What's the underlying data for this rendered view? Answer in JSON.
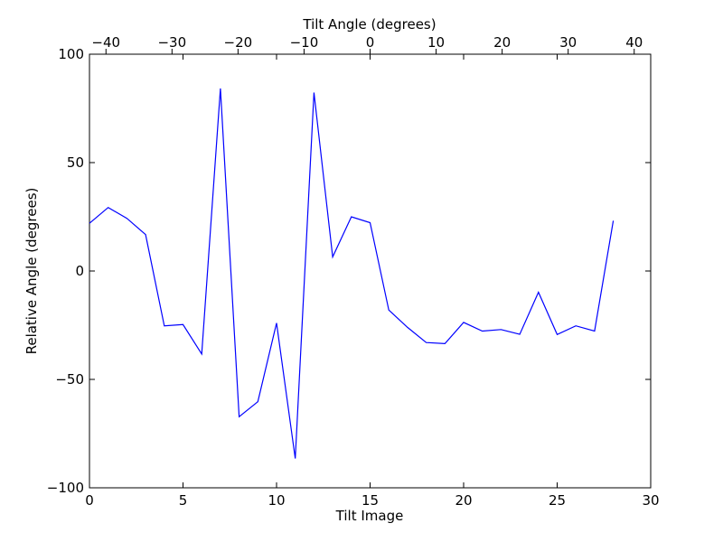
{
  "chart_data": {
    "type": "line",
    "title": "",
    "xlabel": "Tilt Image",
    "ylabel": "Relative Angle (degrees)",
    "x2label": "Tilt Angle (degrees)",
    "xlim": [
      0,
      30
    ],
    "ylim": [
      -100,
      100
    ],
    "x2lim": [
      -42.5,
      42.5
    ],
    "xticks": [
      0,
      5,
      10,
      15,
      20,
      25,
      30
    ],
    "yticks": [
      -100,
      -50,
      0,
      50,
      100
    ],
    "x2ticks": [
      -40,
      -30,
      -20,
      -10,
      0,
      10,
      20,
      30,
      40
    ],
    "xtick_labels": [
      "0",
      "5",
      "10",
      "15",
      "20",
      "25",
      "30"
    ],
    "ytick_labels": [
      "−100",
      "−50",
      "0",
      "50",
      "100"
    ],
    "x2tick_labels": [
      "−40",
      "−30",
      "−20",
      "−10",
      "0",
      "10",
      "20",
      "30",
      "40"
    ],
    "grid": false,
    "line_color": "#0000ff",
    "series": [
      {
        "x": [
          0,
          1,
          2,
          3,
          4,
          5,
          6,
          7,
          8,
          9,
          10,
          11,
          12,
          13,
          14,
          15,
          16,
          17,
          18,
          19,
          20,
          21,
          22,
          23,
          24,
          25,
          26,
          27,
          28
        ],
        "values": [
          22,
          29.3,
          24.3,
          16.8,
          -25.3,
          -24.7,
          -38.3,
          84.2,
          -67.2,
          -60.3,
          -24,
          -86.5,
          82.3,
          6.5,
          25,
          22.3,
          -18,
          -26,
          -33,
          -33.5,
          -23.7,
          -27.7,
          -27,
          -29.2,
          -9.8,
          -29.3,
          -25.3,
          -27.7,
          23.2
        ]
      }
    ]
  }
}
